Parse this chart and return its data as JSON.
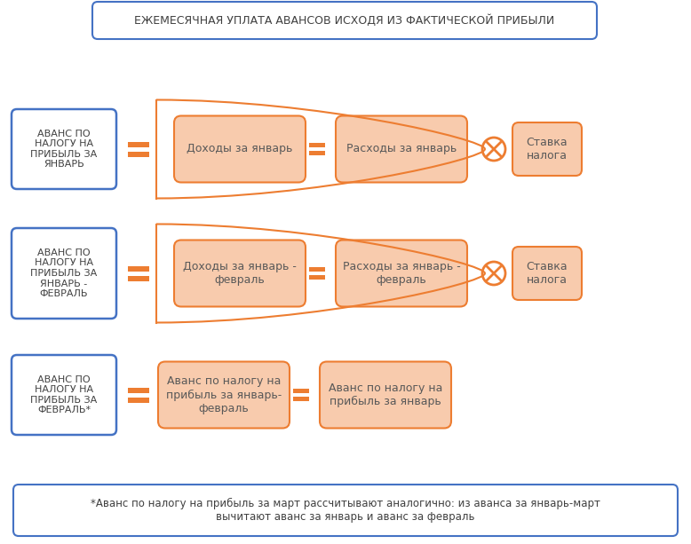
{
  "title": "ЕЖЕМЕСЯЧНАЯ УПЛАТА АВАНСОВ ИСХОДЯ ИЗ ФАКТИЧЕСКОЙ ПРИБЫЛИ",
  "title_box_color": "#ffffff",
  "title_border_color": "#4472C4",
  "title_text_color": "#404040",
  "blue_box_color": "#ffffff",
  "blue_box_border": "#4472C4",
  "blue_box_text_color": "#404040",
  "orange_box_fill": "#F8CBAD",
  "orange_box_border": "#ED7D31",
  "orange_box_text_color": "#595959",
  "symbol_color": "#ED7D31",
  "rows": [
    {
      "left_label": "АВАНС ПО\nНАЛОГУ НА\nПРИБЫЛЬ ЗА\nЯНВАРЬ",
      "items": [
        "Доходы за январь",
        "Расходы за январь"
      ],
      "has_tax": true,
      "has_bracket": true,
      "tax_label": "Ставка\nналога"
    },
    {
      "left_label": "АВАНС ПО\nНАЛОГУ НА\nПРИБЫЛЬ ЗА\nЯНВАРЬ -\nФЕВРАЛЬ",
      "items": [
        "Доходы за январь -\nфевраль",
        "Расходы за январь -\nфевраль"
      ],
      "has_tax": true,
      "has_bracket": true,
      "tax_label": "Ставка\nналога"
    },
    {
      "left_label": "АВАНС ПО\nНАЛОГУ НА\nПРИБЫЛЬ ЗА\nФЕВРАЛЬ*",
      "items": [
        "Аванс по налогу на\nприбыль за январь-\nфевраль",
        "Аванс по налогу на\nприбыль за январь"
      ],
      "has_tax": false,
      "has_bracket": false,
      "tax_label": ""
    }
  ],
  "footnote": "*Аванс по налогу на прибыль за март рассчитывают аналогично: из аванса за январь-март\nвычитают аванс за январь и аванс за февраль",
  "footnote_border": "#4472C4",
  "footnote_bg": "#ffffff",
  "footnote_text_color": "#404040",
  "fig_width": 7.78,
  "fig_height": 6.13,
  "bg_color": "#ffffff"
}
